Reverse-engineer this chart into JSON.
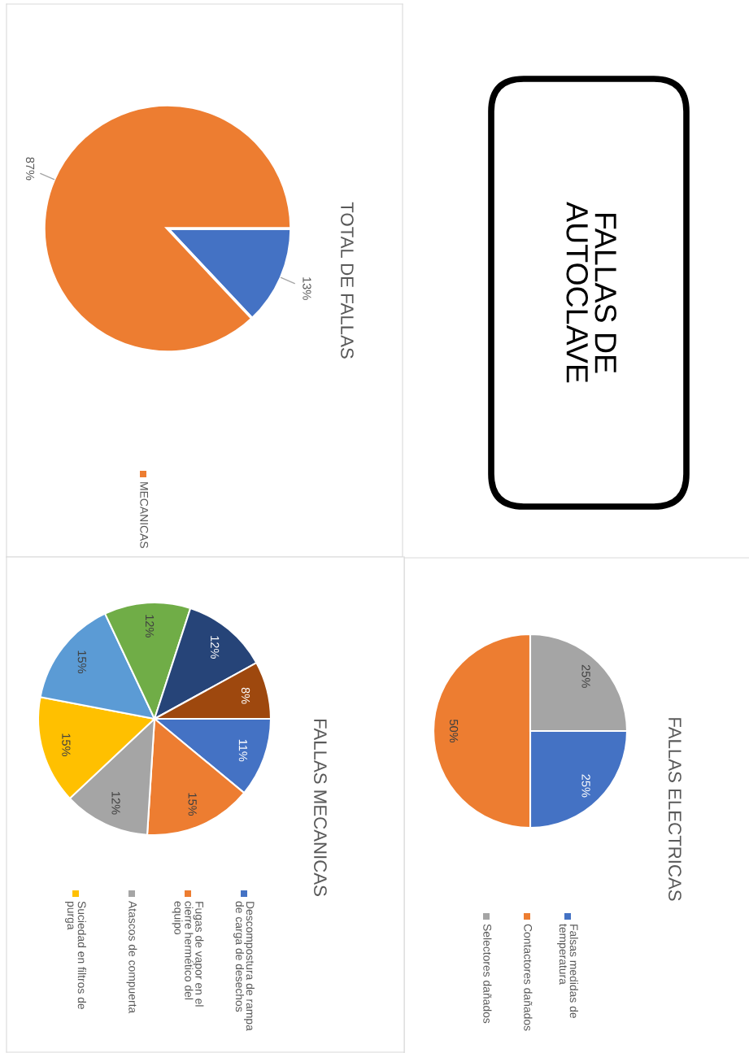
{
  "chart_data": [
    {
      "type": "other",
      "title": "FALLAS DE\nAUTOCLAVE"
    },
    {
      "type": "pie",
      "title": "FALLAS ELECTRICAS",
      "legend": "left",
      "categories": [
        "Falsas medidas de\ntemperatura",
        "Contactores dañados",
        "Selectores dañados"
      ],
      "values": [
        25,
        50,
        25
      ],
      "value_labels": [
        "25%",
        "50%",
        "25%"
      ],
      "colors": [
        "#4472c4",
        "#ed7d31",
        "#a5a5a5"
      ]
    },
    {
      "type": "pie",
      "title": "TOTAL DE FALLAS",
      "legend": "left",
      "categories": [
        null,
        "MECANICAS"
      ],
      "values": [
        13,
        87
      ],
      "value_labels": [
        "13%",
        "87%"
      ],
      "colors": [
        "#4472c4",
        "#ed7d31"
      ]
    },
    {
      "type": "pie",
      "title": "FALLAS MECANICAS",
      "legend": "left",
      "categories": [
        "Descompostura de rampa\nde carga de desechos",
        "Fugas de vapor en el\ncierre hermético del\nequipo",
        "Atascos de compuerta",
        "Suciedad en filtros de\npurga",
        null,
        null,
        null,
        null
      ],
      "values": [
        11,
        15,
        12,
        15,
        15,
        12,
        12,
        8
      ],
      "value_labels": [
        "11%",
        "15%",
        "12%",
        "15%",
        "15%",
        "12%",
        "12%",
        "8%"
      ],
      "colors": [
        "#4472c4",
        "#ed7d31",
        "#a5a5a5",
        "#ffc000",
        "#5b9bd5",
        "#70ad47",
        "#264478",
        "#9e480e"
      ]
    }
  ]
}
